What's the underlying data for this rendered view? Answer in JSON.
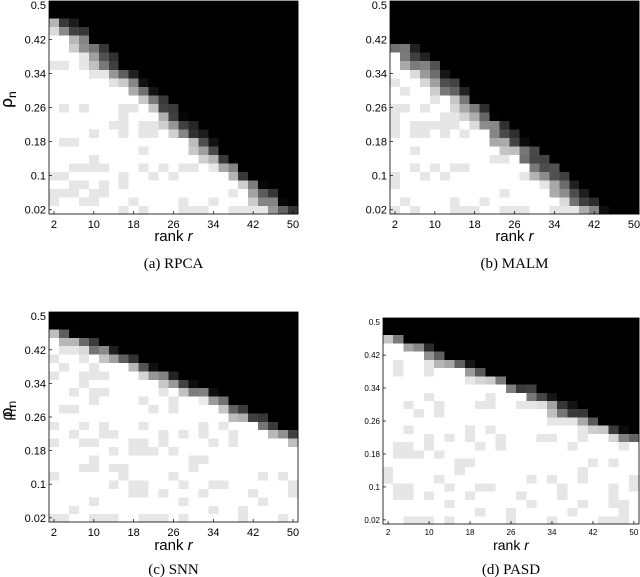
{
  "chart_data": [
    {
      "type": "heatmap",
      "caption": "(a) RPCA",
      "xlabel": "rank",
      "xlabel_var": "r",
      "ylabel": "ρ",
      "ylabel_sub": "n",
      "x": [
        2,
        4,
        6,
        8,
        10,
        12,
        14,
        16,
        18,
        20,
        22,
        24,
        26,
        28,
        30,
        32,
        34,
        36,
        38,
        40,
        42,
        44,
        46,
        48,
        50
      ],
      "y": [
        0.02,
        0.04,
        0.06,
        0.08,
        0.1,
        0.12,
        0.14,
        0.16,
        0.18,
        0.2,
        0.22,
        0.24,
        0.26,
        0.28,
        0.3,
        0.32,
        0.34,
        0.36,
        0.38,
        0.4,
        0.42,
        0.44,
        0.46,
        0.48,
        0.5
      ],
      "xticks": [
        2,
        10,
        18,
        26,
        34,
        42,
        50
      ],
      "yticks": [
        0.02,
        0.1,
        0.18,
        0.26,
        0.34,
        0.42,
        0.5
      ],
      "boundary_rank": [
        23,
        22,
        21,
        20,
        19,
        18,
        17,
        16,
        15,
        14,
        13,
        12,
        11,
        10,
        9,
        8,
        7,
        6,
        5,
        4,
        3,
        2,
        1,
        0,
        0
      ],
      "transition_width": 3.5,
      "colormap": [
        "#ffffff",
        "#000000"
      ]
    },
    {
      "type": "heatmap",
      "caption": "(b) MALM",
      "xlabel": "rank",
      "xlabel_var": "r",
      "ylabel": "ρ",
      "ylabel_sub": "n",
      "x": [
        2,
        4,
        6,
        8,
        10,
        12,
        14,
        16,
        18,
        20,
        22,
        24,
        26,
        28,
        30,
        32,
        34,
        36,
        38,
        40,
        42,
        44,
        46,
        48,
        50
      ],
      "y": [
        0.02,
        0.04,
        0.06,
        0.08,
        0.1,
        0.12,
        0.14,
        0.16,
        0.18,
        0.2,
        0.22,
        0.24,
        0.26,
        0.28,
        0.3,
        0.32,
        0.34,
        0.36,
        0.38,
        0.4,
        0.42,
        0.44,
        0.46,
        0.48,
        0.5
      ],
      "xticks": [
        2,
        10,
        18,
        26,
        34,
        42,
        50
      ],
      "yticks": [
        0.02,
        0.1,
        0.18,
        0.26,
        0.34,
        0.42,
        0.5
      ],
      "boundary_rank": [
        20,
        19,
        18,
        17,
        16,
        15,
        14,
        13,
        12,
        11,
        10,
        9,
        8,
        7,
        6,
        5,
        4,
        3,
        2,
        1,
        0,
        0,
        0,
        0,
        0
      ],
      "transition_width": 4.5,
      "colormap": [
        "#ffffff",
        "#000000"
      ]
    },
    {
      "type": "heatmap",
      "caption": "(c) SNN",
      "xlabel": "rank",
      "xlabel_var": "r",
      "ylabel": "ρ",
      "ylabel_sub": "n",
      "x": [
        2,
        4,
        6,
        8,
        10,
        12,
        14,
        16,
        18,
        20,
        22,
        24,
        26,
        28,
        30,
        32,
        34,
        36,
        38,
        40,
        42,
        44,
        46,
        48,
        50
      ],
      "y": [
        0.02,
        0.04,
        0.06,
        0.08,
        0.1,
        0.12,
        0.14,
        0.16,
        0.18,
        0.2,
        0.22,
        0.24,
        0.26,
        0.28,
        0.3,
        0.32,
        0.34,
        0.36,
        0.38,
        0.4,
        0.42,
        0.44,
        0.46,
        0.48,
        0.5
      ],
      "xticks": [
        2,
        10,
        18,
        26,
        34,
        42,
        50
      ],
      "yticks": [
        0.02,
        0.1,
        0.18,
        0.26,
        0.34,
        0.42,
        0.5
      ],
      "boundary_rank": [
        40,
        39,
        38,
        36,
        35,
        33,
        32,
        30,
        28,
        26,
        24,
        22,
        20,
        18,
        17,
        15,
        13,
        11,
        9,
        7,
        5,
        3,
        1,
        0,
        0
      ],
      "transition_width": 4.0,
      "colormap": [
        "#ffffff",
        "#000000"
      ]
    },
    {
      "type": "heatmap",
      "caption": "(d) PASD",
      "xlabel": "rank",
      "xlabel_var": "r",
      "ylabel": "ρ",
      "ylabel_sub": "n",
      "x": [
        2,
        4,
        6,
        8,
        10,
        12,
        14,
        16,
        18,
        20,
        22,
        24,
        26,
        28,
        30,
        32,
        34,
        36,
        38,
        40,
        42,
        44,
        46,
        48,
        50
      ],
      "y": [
        0.02,
        0.04,
        0.06,
        0.08,
        0.1,
        0.12,
        0.14,
        0.16,
        0.18,
        0.2,
        0.22,
        0.24,
        0.26,
        0.28,
        0.3,
        0.32,
        0.34,
        0.36,
        0.38,
        0.4,
        0.42,
        0.44,
        0.46,
        0.48,
        0.5
      ],
      "xticks": [
        2,
        10,
        18,
        26,
        34,
        42,
        50
      ],
      "yticks": [
        0.02,
        0.1,
        0.18,
        0.26,
        0.34,
        0.42,
        0.5
      ],
      "boundary_rank": [
        42,
        40,
        39,
        37,
        35,
        34,
        32,
        30,
        28,
        26,
        24,
        22,
        20,
        18,
        17,
        15,
        13,
        11,
        9,
        7,
        5,
        3,
        1,
        0,
        0
      ],
      "transition_width": 4.0,
      "colormap": [
        "#ffffff",
        "#000000"
      ]
    }
  ]
}
